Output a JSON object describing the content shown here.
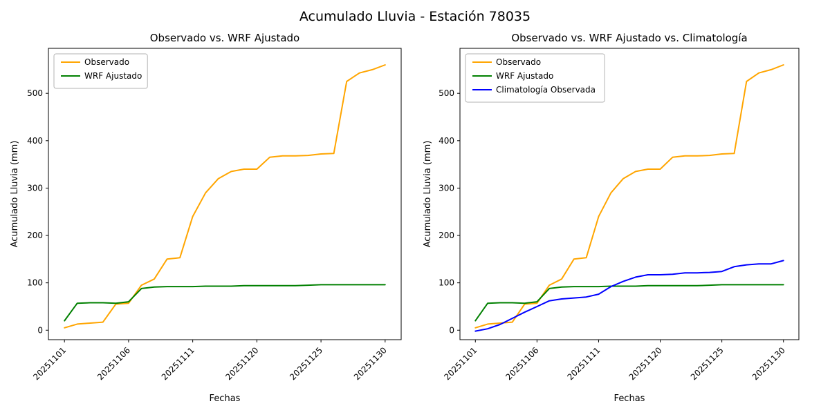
{
  "figure": {
    "title": "Acumulado Lluvia - Estación 78035"
  },
  "chart_data": [
    {
      "type": "line",
      "title": "Observado vs. WRF Ajustado",
      "xlabel": "Fechas",
      "ylabel": "Acumulado Lluvia (mm)",
      "grid": false,
      "legend_position": "upper left",
      "ylim": [
        -20,
        595
      ],
      "yticks": [
        0,
        100,
        200,
        300,
        400,
        500
      ],
      "categories": [
        "20251101",
        "20251102",
        "20251103",
        "20251104",
        "20251105",
        "20251106",
        "20251107",
        "20251108",
        "20251109",
        "20251110",
        "20251111",
        "20251116",
        "20251117",
        "20251118",
        "20251119",
        "20251120",
        "20251121",
        "20251122",
        "20251123",
        "20251124",
        "20251125",
        "20251126",
        "20251127",
        "20251128",
        "20251129",
        "20251130"
      ],
      "xtick_indices": [
        0,
        5,
        10,
        15,
        20,
        25
      ],
      "xtick_labels": [
        "20251101",
        "20251106",
        "20251111",
        "20251120",
        "20251125",
        "20251130"
      ],
      "series": [
        {
          "name": "Observado",
          "color": "#ffa500",
          "values": [
            5,
            13,
            15,
            17,
            55,
            57,
            95,
            108,
            150,
            153,
            240,
            290,
            320,
            335,
            340,
            340,
            365,
            368,
            368,
            369,
            372,
            373,
            525,
            543,
            550,
            560
          ]
        },
        {
          "name": "WRF Ajustado",
          "color": "#008000",
          "values": [
            20,
            57,
            58,
            58,
            57,
            60,
            88,
            91,
            92,
            92,
            92,
            93,
            93,
            93,
            94,
            94,
            94,
            94,
            94,
            95,
            96,
            96,
            96,
            96,
            96,
            96
          ]
        }
      ]
    },
    {
      "type": "line",
      "title": "Observado vs. WRF Ajustado vs. Climatología",
      "xlabel": "Fechas",
      "ylabel": "Acumulado Lluvia (mm)",
      "grid": false,
      "legend_position": "upper left",
      "ylim": [
        -20,
        595
      ],
      "yticks": [
        0,
        100,
        200,
        300,
        400,
        500
      ],
      "categories": [
        "20251101",
        "20251102",
        "20251103",
        "20251104",
        "20251105",
        "20251106",
        "20251107",
        "20251108",
        "20251109",
        "20251110",
        "20251111",
        "20251116",
        "20251117",
        "20251118",
        "20251119",
        "20251120",
        "20251121",
        "20251122",
        "20251123",
        "20251124",
        "20251125",
        "20251126",
        "20251127",
        "20251128",
        "20251129",
        "20251130"
      ],
      "xtick_indices": [
        0,
        5,
        10,
        15,
        20,
        25
      ],
      "xtick_labels": [
        "20251101",
        "20251106",
        "20251111",
        "20251120",
        "20251125",
        "20251130"
      ],
      "series": [
        {
          "name": "Observado",
          "color": "#ffa500",
          "values": [
            5,
            13,
            15,
            17,
            55,
            57,
            95,
            108,
            150,
            153,
            240,
            290,
            320,
            335,
            340,
            340,
            365,
            368,
            368,
            369,
            372,
            373,
            525,
            543,
            550,
            560
          ]
        },
        {
          "name": "WRF Ajustado",
          "color": "#008000",
          "values": [
            20,
            57,
            58,
            58,
            57,
            60,
            88,
            91,
            92,
            92,
            92,
            93,
            93,
            93,
            94,
            94,
            94,
            94,
            94,
            95,
            96,
            96,
            96,
            96,
            96,
            96
          ]
        },
        {
          "name": "Climatología Observada",
          "color": "#0000ff",
          "values": [
            -2,
            3,
            12,
            25,
            38,
            50,
            62,
            66,
            68,
            70,
            76,
            92,
            103,
            112,
            117,
            117,
            118,
            121,
            121,
            122,
            124,
            134,
            138,
            140,
            140,
            147
          ]
        }
      ]
    }
  ]
}
